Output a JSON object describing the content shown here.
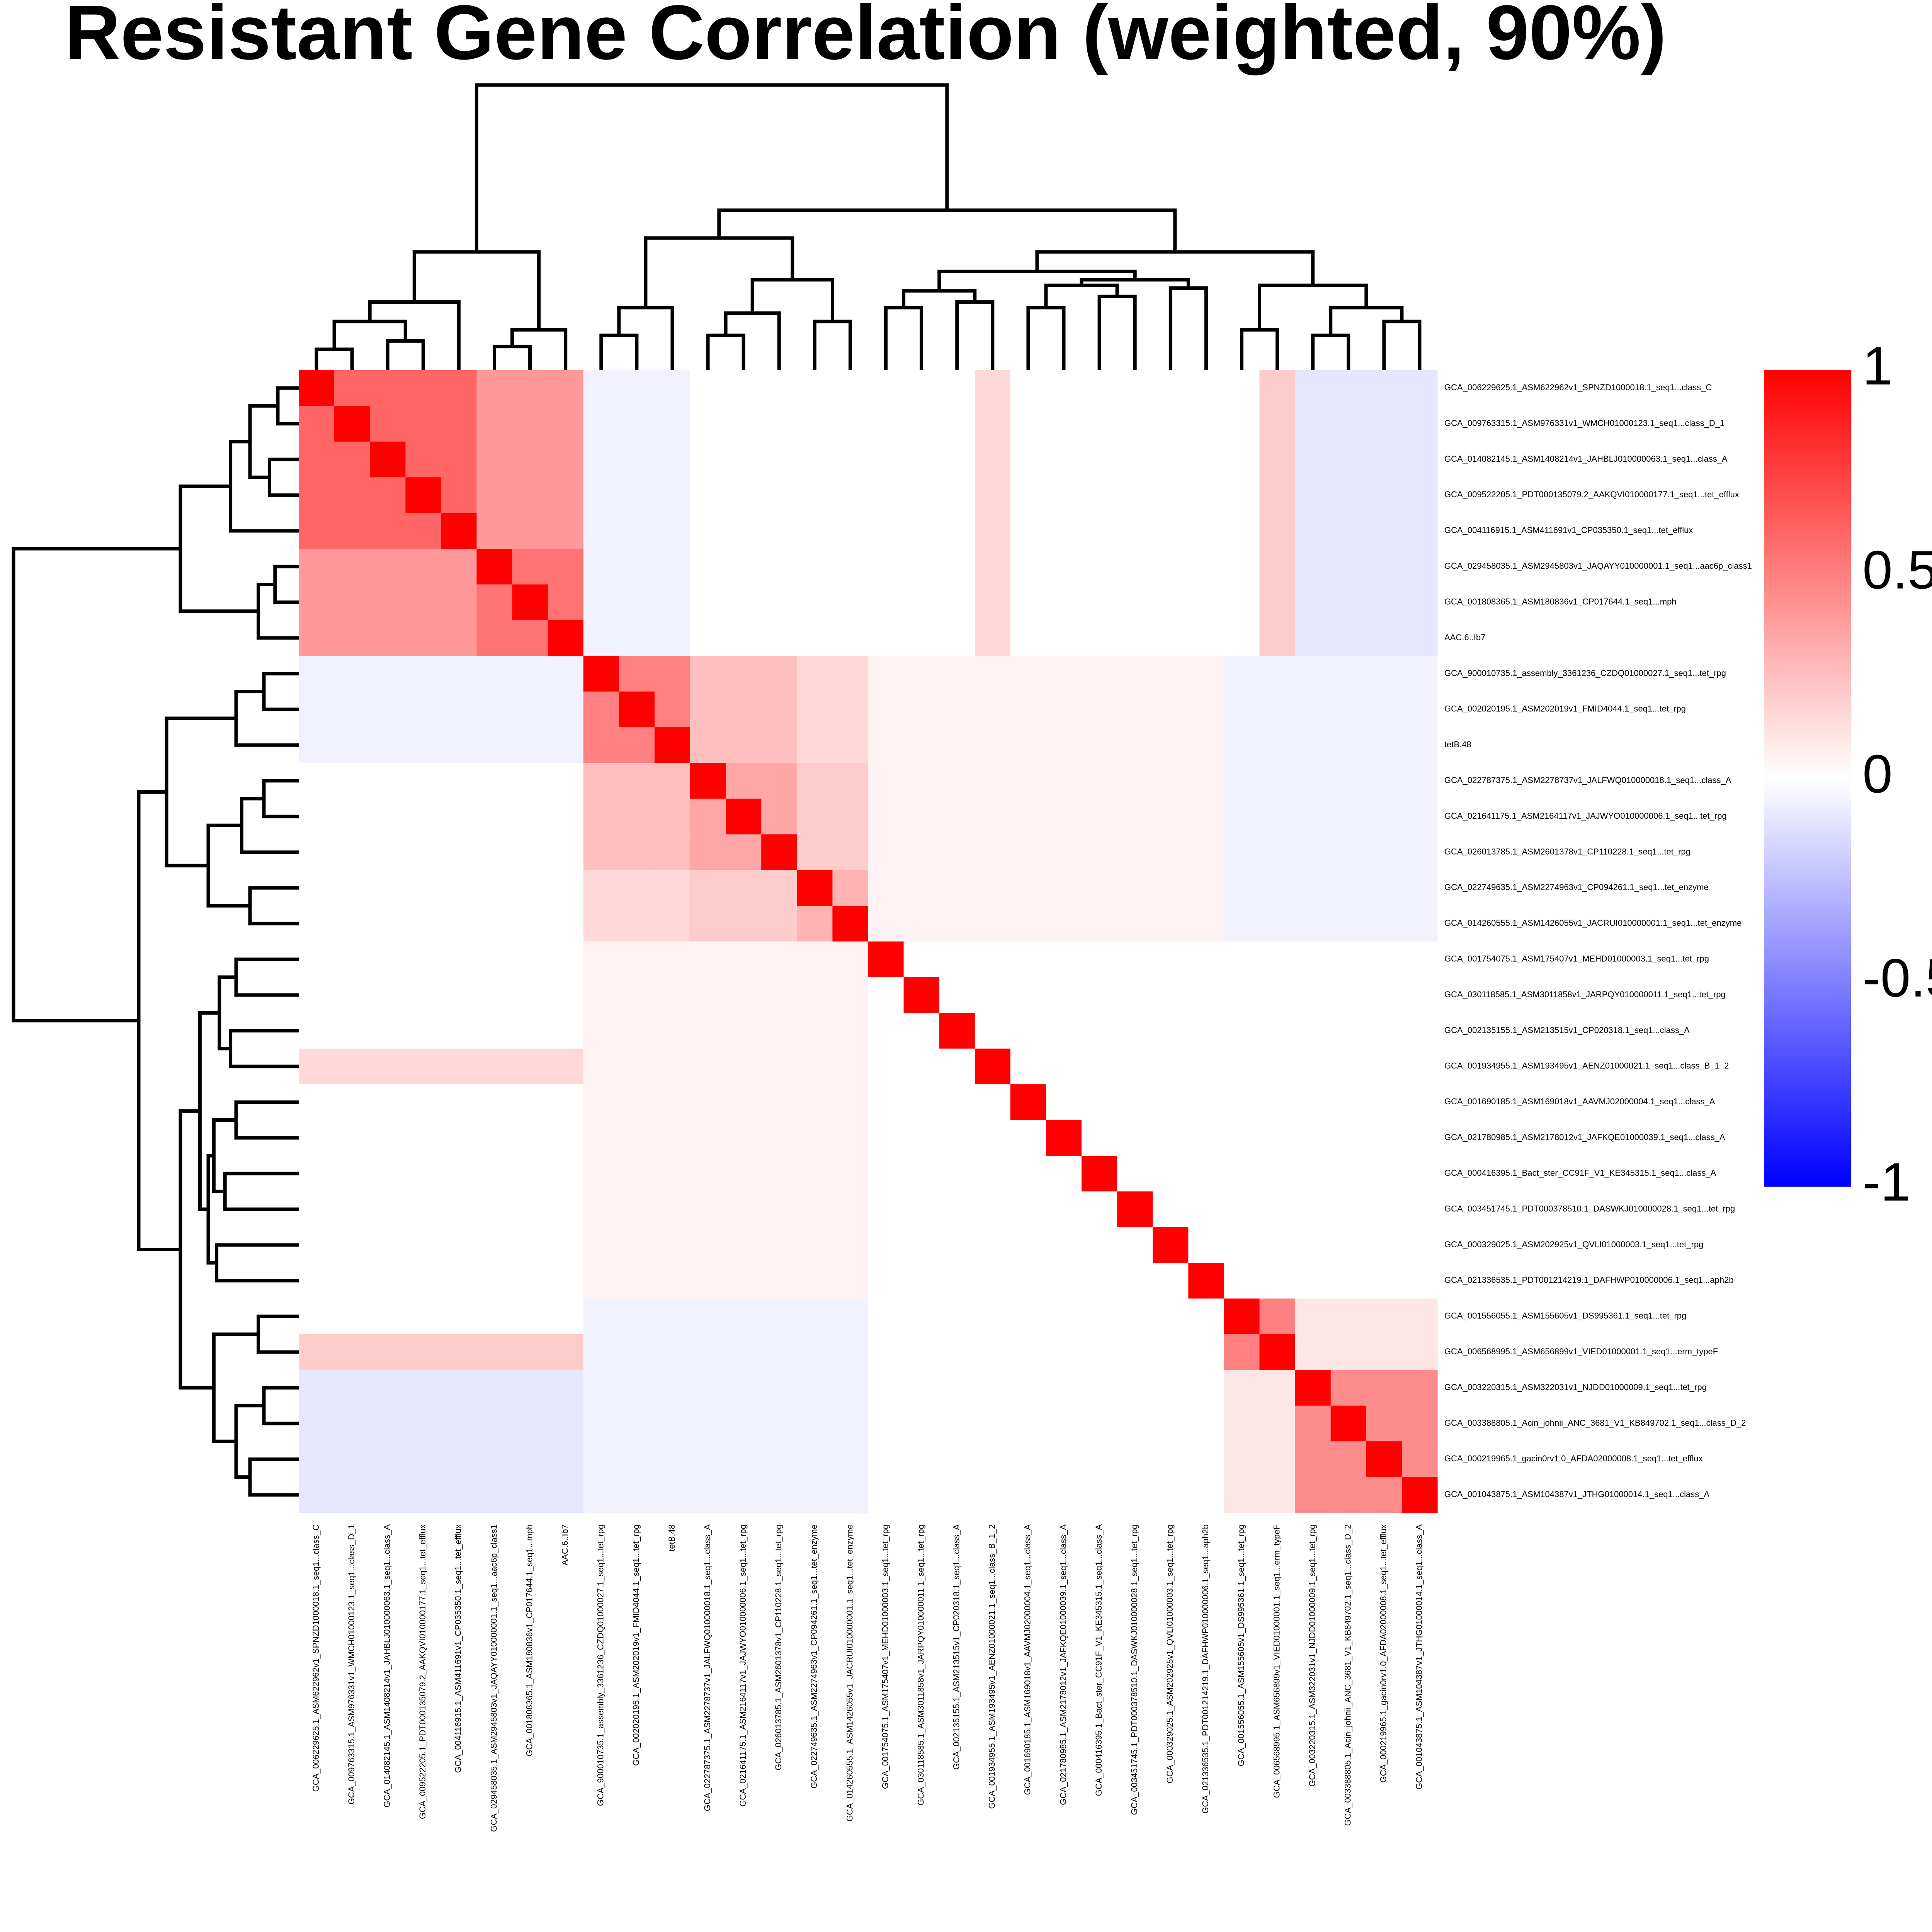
{
  "chart_data": {
    "type": "heatmap",
    "title": "Resistant Gene Correlation (weighted, 90%)",
    "labels": [
      "GCA_006229625.1_ASM622962v1_SPNZD1000018.1_seq1...class_C",
      "GCA_009763315.1_ASM976331v1_WMCH01000123.1_seq1...class_D_1",
      "GCA_014082145.1_ASM1408214v1_JAHBLJ010000063.1_seq1...class_A",
      "GCA_009522205.1_PDT000135079.2_AAKQVI010000177.1_seq1...tet_efflux",
      "GCA_004116915.1_ASM411691v1_CP035350.1_seq1...tet_efflux",
      "GCA_029458035.1_ASM2945803v1_JAQAYY010000001.1_seq1...aac6p_class1",
      "GCA_001808365.1_ASM180836v1_CP017644.1_seq1...mph",
      "AAC.6..Ib7",
      "GCA_900010735.1_assembly_3361236_CZDQ01000027.1_seq1...tet_rpg",
      "GCA_002020195.1_ASM202019v1_FMID4044.1_seq1...tet_rpg",
      "tetB.48",
      "GCA_022787375.1_ASM2278737v1_JALFWQ010000018.1_seq1...class_A",
      "GCA_021641175.1_ASM2164117v1_JAJWYO010000006.1_seq1...tet_rpg",
      "GCA_026013785.1_ASM2601378v1_CP110228.1_seq1...tet_rpg",
      "GCA_022749635.1_ASM2274963v1_CP094261.1_seq1...tet_enzyme",
      "GCA_014260555.1_ASM1426055v1_JACRUI010000001.1_seq1...tet_enzyme",
      "GCA_001754075.1_ASM175407v1_MEHD01000003.1_seq1...tet_rpg",
      "GCA_030118585.1_ASM3011858v1_JARPQY010000011.1_seq1...tet_rpg",
      "GCA_002135155.1_ASM213515v1_CP020318.1_seq1...class_A",
      "GCA_001934955.1_ASM193495v1_AENZ01000021.1_seq1...class_B_1_2",
      "GCA_001690185.1_ASM169018v1_AAVMJ02000004.1_seq1...class_A",
      "GCA_021780985.1_ASM2178012v1_JAFKQE01000039.1_seq1...class_A",
      "GCA_000416395.1_Bact_ster_CC91F_V1_KE345315.1_seq1...class_A",
      "GCA_003451745.1_PDT000378510.1_DASWKJ010000028.1_seq1...tet_rpg",
      "GCA_000329025.1_ASM202925v1_QVLI01000003.1_seq1...tet_rpg",
      "GCA_021336535.1_PDT001214219.1_DAFHWP010000006.1_seq1...aph2b",
      "GCA_001556055.1_ASM155605v1_DS995361.1_seq1...tet_rpg",
      "GCA_006568995.1_ASM656899v1_VIED01000001.1_seq1...erm_typeF",
      "GCA_003220315.1_ASM322031v1_NJDD01000009.1_seq1...tet_rpg",
      "GCA_003388805.1_Acin_johnii_ANC_3681_V1_KB849702.1_seq1...class_D_2",
      "GCA_000219965.1_gacin0rv1.0_AFDA02000008.1_seq1...tet_efflux",
      "GCA_001043875.1_ASM104387v1_JTHG01000014.1_seq1...class_A"
    ],
    "matrix": [
      [
        1,
        0.6,
        0.6,
        0.6,
        0.6,
        0.4,
        0.4,
        0.4,
        -0.05,
        -0.05,
        -0.05,
        0,
        0,
        0,
        0,
        0,
        0,
        0,
        0,
        0.15,
        0,
        0,
        0,
        0,
        0,
        0,
        0,
        0.2,
        -0.1,
        -0.1,
        -0.1,
        -0.1
      ],
      [
        0.6,
        1,
        0.6,
        0.6,
        0.6,
        0.4,
        0.4,
        0.4,
        -0.05,
        -0.05,
        -0.05,
        0,
        0,
        0,
        0,
        0,
        0,
        0,
        0,
        0.15,
        0,
        0,
        0,
        0,
        0,
        0,
        0,
        0.2,
        -0.1,
        -0.1,
        -0.1,
        -0.1
      ],
      [
        0.6,
        0.6,
        1,
        0.6,
        0.6,
        0.4,
        0.4,
        0.4,
        -0.05,
        -0.05,
        -0.05,
        0,
        0,
        0,
        0,
        0,
        0,
        0,
        0,
        0.15,
        0,
        0,
        0,
        0,
        0,
        0,
        0,
        0.2,
        -0.1,
        -0.1,
        -0.1,
        -0.1
      ],
      [
        0.6,
        0.6,
        0.6,
        1,
        0.6,
        0.4,
        0.4,
        0.4,
        -0.05,
        -0.05,
        -0.05,
        0,
        0,
        0,
        0,
        0,
        0,
        0,
        0,
        0.15,
        0,
        0,
        0,
        0,
        0,
        0,
        0,
        0.2,
        -0.1,
        -0.1,
        -0.1,
        -0.1
      ],
      [
        0.6,
        0.6,
        0.6,
        0.6,
        1,
        0.4,
        0.4,
        0.4,
        -0.05,
        -0.05,
        -0.05,
        0,
        0,
        0,
        0,
        0,
        0,
        0,
        0,
        0.15,
        0,
        0,
        0,
        0,
        0,
        0,
        0,
        0.2,
        -0.1,
        -0.1,
        -0.1,
        -0.1
      ],
      [
        0.4,
        0.4,
        0.4,
        0.4,
        0.4,
        1,
        0.55,
        0.55,
        -0.05,
        -0.05,
        -0.05,
        0,
        0,
        0,
        0,
        0,
        0,
        0,
        0,
        0.15,
        0,
        0,
        0,
        0,
        0,
        0,
        0,
        0.2,
        -0.1,
        -0.1,
        -0.1,
        -0.1
      ],
      [
        0.4,
        0.4,
        0.4,
        0.4,
        0.4,
        0.55,
        1,
        0.55,
        -0.05,
        -0.05,
        -0.05,
        0,
        0,
        0,
        0,
        0,
        0,
        0,
        0,
        0.15,
        0,
        0,
        0,
        0,
        0,
        0,
        0,
        0.2,
        -0.1,
        -0.1,
        -0.1,
        -0.1
      ],
      [
        0.4,
        0.4,
        0.4,
        0.4,
        0.4,
        0.55,
        0.55,
        1,
        -0.05,
        -0.05,
        -0.05,
        0,
        0,
        0,
        0,
        0,
        0,
        0,
        0,
        0.15,
        0,
        0,
        0,
        0,
        0,
        0,
        0,
        0.2,
        -0.1,
        -0.1,
        -0.1,
        -0.1
      ],
      [
        -0.05,
        -0.05,
        -0.05,
        -0.05,
        -0.05,
        -0.05,
        -0.05,
        -0.05,
        1,
        0.5,
        0.5,
        0.25,
        0.25,
        0.25,
        0.15,
        0.15,
        0.05,
        0.05,
        0.05,
        0.05,
        0.05,
        0.05,
        0.05,
        0.05,
        0.05,
        0.05,
        -0.05,
        -0.05,
        -0.05,
        -0.05,
        -0.05,
        -0.05
      ],
      [
        -0.05,
        -0.05,
        -0.05,
        -0.05,
        -0.05,
        -0.05,
        -0.05,
        -0.05,
        0.5,
        1,
        0.5,
        0.25,
        0.25,
        0.25,
        0.15,
        0.15,
        0.05,
        0.05,
        0.05,
        0.05,
        0.05,
        0.05,
        0.05,
        0.05,
        0.05,
        0.05,
        -0.05,
        -0.05,
        -0.05,
        -0.05,
        -0.05,
        -0.05
      ],
      [
        -0.05,
        -0.05,
        -0.05,
        -0.05,
        -0.05,
        -0.05,
        -0.05,
        -0.05,
        0.5,
        0.5,
        1,
        0.25,
        0.25,
        0.25,
        0.15,
        0.15,
        0.05,
        0.05,
        0.05,
        0.05,
        0.05,
        0.05,
        0.05,
        0.05,
        0.05,
        0.05,
        -0.05,
        -0.05,
        -0.05,
        -0.05,
        -0.05,
        -0.05
      ],
      [
        0,
        0,
        0,
        0,
        0,
        0,
        0,
        0,
        0.25,
        0.25,
        0.25,
        1,
        0.35,
        0.35,
        0.2,
        0.2,
        0.05,
        0.05,
        0.05,
        0.05,
        0.05,
        0.05,
        0.05,
        0.05,
        0.05,
        0.05,
        -0.05,
        -0.05,
        -0.05,
        -0.05,
        -0.05,
        -0.05
      ],
      [
        0,
        0,
        0,
        0,
        0,
        0,
        0,
        0,
        0.25,
        0.25,
        0.25,
        0.35,
        1,
        0.35,
        0.2,
        0.2,
        0.05,
        0.05,
        0.05,
        0.05,
        0.05,
        0.05,
        0.05,
        0.05,
        0.05,
        0.05,
        -0.05,
        -0.05,
        -0.05,
        -0.05,
        -0.05,
        -0.05
      ],
      [
        0,
        0,
        0,
        0,
        0,
        0,
        0,
        0,
        0.25,
        0.25,
        0.25,
        0.35,
        0.35,
        1,
        0.2,
        0.2,
        0.05,
        0.05,
        0.05,
        0.05,
        0.05,
        0.05,
        0.05,
        0.05,
        0.05,
        0.05,
        -0.05,
        -0.05,
        -0.05,
        -0.05,
        -0.05,
        -0.05
      ],
      [
        0,
        0,
        0,
        0,
        0,
        0,
        0,
        0,
        0.15,
        0.15,
        0.15,
        0.2,
        0.2,
        0.2,
        1,
        0.3,
        0.05,
        0.05,
        0.05,
        0.05,
        0.05,
        0.05,
        0.05,
        0.05,
        0.05,
        0.05,
        -0.05,
        -0.05,
        -0.05,
        -0.05,
        -0.05,
        -0.05
      ],
      [
        0,
        0,
        0,
        0,
        0,
        0,
        0,
        0,
        0.15,
        0.15,
        0.15,
        0.2,
        0.2,
        0.2,
        0.3,
        1,
        0.05,
        0.05,
        0.05,
        0.05,
        0.05,
        0.05,
        0.05,
        0.05,
        0.05,
        0.05,
        -0.05,
        -0.05,
        -0.05,
        -0.05,
        -0.05,
        -0.05
      ],
      [
        0,
        0,
        0,
        0,
        0,
        0,
        0,
        0,
        0.05,
        0.05,
        0.05,
        0.05,
        0.05,
        0.05,
        0.05,
        0.05,
        1,
        0,
        0,
        0,
        0,
        0,
        0,
        0,
        0,
        0,
        0,
        0,
        0,
        0,
        0,
        0
      ],
      [
        0,
        0,
        0,
        0,
        0,
        0,
        0,
        0,
        0.05,
        0.05,
        0.05,
        0.05,
        0.05,
        0.05,
        0.05,
        0.05,
        0,
        1,
        0,
        0,
        0,
        0,
        0,
        0,
        0,
        0,
        0,
        0,
        0,
        0,
        0,
        0
      ],
      [
        0,
        0,
        0,
        0,
        0,
        0,
        0,
        0,
        0.05,
        0.05,
        0.05,
        0.05,
        0.05,
        0.05,
        0.05,
        0.05,
        0,
        0,
        1,
        0,
        0,
        0,
        0,
        0,
        0,
        0,
        0,
        0,
        0,
        0,
        0,
        0
      ],
      [
        0.15,
        0.15,
        0.15,
        0.15,
        0.15,
        0.15,
        0.15,
        0.15,
        0.05,
        0.05,
        0.05,
        0.05,
        0.05,
        0.05,
        0.05,
        0.05,
        0,
        0,
        0,
        1,
        0,
        0,
        0,
        0,
        0,
        0,
        0,
        0,
        0,
        0,
        0,
        0
      ],
      [
        0,
        0,
        0,
        0,
        0,
        0,
        0,
        0,
        0.05,
        0.05,
        0.05,
        0.05,
        0.05,
        0.05,
        0.05,
        0.05,
        0,
        0,
        0,
        0,
        1,
        0,
        0,
        0,
        0,
        0,
        0,
        0,
        0,
        0,
        0,
        0
      ],
      [
        0,
        0,
        0,
        0,
        0,
        0,
        0,
        0,
        0.05,
        0.05,
        0.05,
        0.05,
        0.05,
        0.05,
        0.05,
        0.05,
        0,
        0,
        0,
        0,
        0,
        1,
        0,
        0,
        0,
        0,
        0,
        0,
        0,
        0,
        0,
        0
      ],
      [
        0,
        0,
        0,
        0,
        0,
        0,
        0,
        0,
        0.05,
        0.05,
        0.05,
        0.05,
        0.05,
        0.05,
        0.05,
        0.05,
        0,
        0,
        0,
        0,
        0,
        0,
        1,
        0,
        0,
        0,
        0,
        0,
        0,
        0,
        0,
        0
      ],
      [
        0,
        0,
        0,
        0,
        0,
        0,
        0,
        0,
        0.05,
        0.05,
        0.05,
        0.05,
        0.05,
        0.05,
        0.05,
        0.05,
        0,
        0,
        0,
        0,
        0,
        0,
        0,
        1,
        0,
        0,
        0,
        0,
        0,
        0,
        0,
        0
      ],
      [
        0,
        0,
        0,
        0,
        0,
        0,
        0,
        0,
        0.05,
        0.05,
        0.05,
        0.05,
        0.05,
        0.05,
        0.05,
        0.05,
        0,
        0,
        0,
        0,
        0,
        0,
        0,
        0,
        1,
        0,
        0,
        0,
        0,
        0,
        0,
        0
      ],
      [
        0,
        0,
        0,
        0,
        0,
        0,
        0,
        0,
        0.05,
        0.05,
        0.05,
        0.05,
        0.05,
        0.05,
        0.05,
        0.05,
        0,
        0,
        0,
        0,
        0,
        0,
        0,
        0,
        0,
        1,
        0,
        0,
        0,
        0,
        0,
        0
      ],
      [
        0,
        0,
        0,
        0,
        0,
        0,
        0,
        0,
        -0.05,
        -0.05,
        -0.05,
        -0.05,
        -0.05,
        -0.05,
        -0.05,
        -0.05,
        0,
        0,
        0,
        0,
        0,
        0,
        0,
        0,
        0,
        0,
        1,
        0.5,
        0.1,
        0.1,
        0.1,
        0.1
      ],
      [
        0.2,
        0.2,
        0.2,
        0.2,
        0.2,
        0.2,
        0.2,
        0.2,
        -0.05,
        -0.05,
        -0.05,
        -0.05,
        -0.05,
        -0.05,
        -0.05,
        -0.05,
        0,
        0,
        0,
        0,
        0,
        0,
        0,
        0,
        0,
        0,
        0.5,
        1,
        0.1,
        0.1,
        0.1,
        0.1
      ],
      [
        -0.1,
        -0.1,
        -0.1,
        -0.1,
        -0.1,
        -0.1,
        -0.1,
        -0.1,
        -0.05,
        -0.05,
        -0.05,
        -0.05,
        -0.05,
        -0.05,
        -0.05,
        -0.05,
        0,
        0,
        0,
        0,
        0,
        0,
        0,
        0,
        0,
        0,
        0.1,
        0.1,
        1,
        0.45,
        0.45,
        0.45
      ],
      [
        -0.1,
        -0.1,
        -0.1,
        -0.1,
        -0.1,
        -0.1,
        -0.1,
        -0.1,
        -0.05,
        -0.05,
        -0.05,
        -0.05,
        -0.05,
        -0.05,
        -0.05,
        -0.05,
        0,
        0,
        0,
        0,
        0,
        0,
        0,
        0,
        0,
        0,
        0.1,
        0.1,
        0.45,
        1,
        0.45,
        0.45
      ],
      [
        -0.1,
        -0.1,
        -0.1,
        -0.1,
        -0.1,
        -0.1,
        -0.1,
        -0.1,
        -0.05,
        -0.05,
        -0.05,
        -0.05,
        -0.05,
        -0.05,
        -0.05,
        -0.05,
        0,
        0,
        0,
        0,
        0,
        0,
        0,
        0,
        0,
        0,
        0.1,
        0.1,
        0.45,
        0.45,
        1,
        0.45
      ],
      [
        -0.1,
        -0.1,
        -0.1,
        -0.1,
        -0.1,
        -0.1,
        -0.1,
        -0.1,
        -0.05,
        -0.05,
        -0.05,
        -0.05,
        -0.05,
        -0.05,
        -0.05,
        -0.05,
        0,
        0,
        0,
        0,
        0,
        0,
        0,
        0,
        0,
        0,
        0.1,
        0.1,
        0.45,
        0.45,
        0.45,
        1
      ]
    ],
    "dendrogram": [
      [
        0,
        1,
        0.05
      ],
      [
        2,
        3,
        0.08
      ],
      [
        32,
        33,
        0.15
      ],
      [
        34,
        4,
        0.22
      ],
      [
        5,
        6,
        0.06
      ],
      [
        36,
        7,
        0.12
      ],
      [
        35,
        37,
        0.4
      ],
      [
        8,
        9,
        0.1
      ],
      [
        39,
        10,
        0.2
      ],
      [
        11,
        12,
        0.1
      ],
      [
        41,
        13,
        0.18
      ],
      [
        14,
        15,
        0.15
      ],
      [
        42,
        43,
        0.3
      ],
      [
        40,
        44,
        0.45
      ],
      [
        16,
        17,
        0.2
      ],
      [
        18,
        19,
        0.22
      ],
      [
        46,
        47,
        0.26
      ],
      [
        20,
        21,
        0.2
      ],
      [
        22,
        23,
        0.24
      ],
      [
        49,
        50,
        0.28
      ],
      [
        24,
        25,
        0.27
      ],
      [
        51,
        52,
        0.3
      ],
      [
        48,
        53,
        0.33
      ],
      [
        26,
        27,
        0.12
      ],
      [
        28,
        29,
        0.1
      ],
      [
        30,
        31,
        0.15
      ],
      [
        56,
        57,
        0.2
      ],
      [
        55,
        58,
        0.28
      ],
      [
        54,
        59,
        0.4
      ],
      [
        45,
        60,
        0.55
      ],
      [
        38,
        61,
        1.0
      ]
    ],
    "colors": {
      "low": "#0000ff",
      "mid": "#ffffff",
      "high": "#ff0000"
    },
    "colorbar_lim": [
      -1,
      1
    ],
    "colorbar_ticks": [
      1,
      0.5,
      0,
      -0.5,
      -1
    ]
  }
}
